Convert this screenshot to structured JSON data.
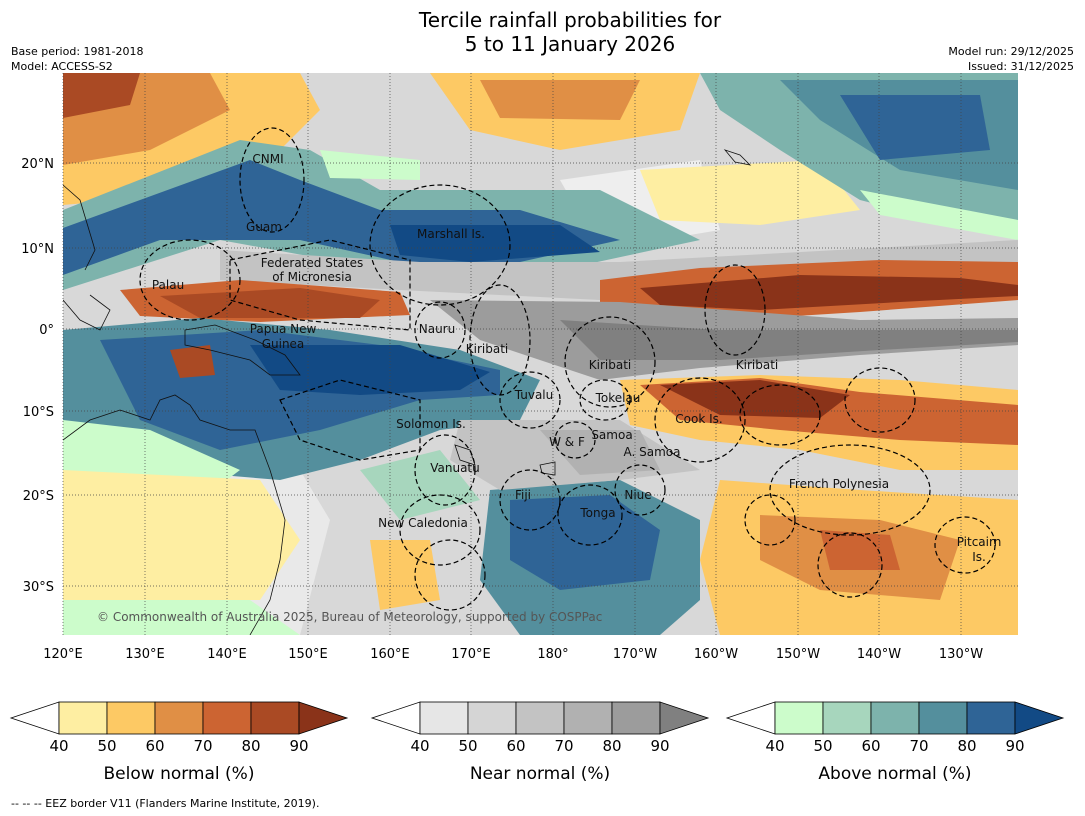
{
  "title": {
    "line1": "Tercile rainfall probabilities for",
    "line2": "5 to 11 January 2026"
  },
  "meta": {
    "base_period": "Base period: 1981-2018",
    "model": "Model: ACCESS-S2",
    "model_run": "Model run: 29/12/2025",
    "issued": "Issued: 31/12/2025"
  },
  "axes": {
    "lat_labels": [
      "20°N",
      "10°N",
      "0°",
      "10°S",
      "20°S",
      "30°S"
    ],
    "lon_labels": [
      "120°E",
      "130°E",
      "140°E",
      "150°E",
      "160°E",
      "170°E",
      "180°",
      "170°W",
      "160°W",
      "150°W",
      "140°W",
      "130°W"
    ]
  },
  "places": [
    "CNMI",
    "Guam",
    "Marshall Is.",
    "Federated States",
    "of Micronesia",
    "Palau",
    "Papua New",
    "Guinea",
    "Nauru",
    "Kiribati",
    "Kiribati",
    "Kiribati",
    "Tuvalu",
    "Tokelau",
    "Cook Is.",
    "Solomon Is.",
    "W & F",
    "Samoa",
    "A. Samoa",
    "Vanuatu",
    "Fiji",
    "Niue",
    "French Polynesia",
    "Tonga",
    "New Caledonia",
    "Pitcairn",
    "Is."
  ],
  "credit": "© Commonwealth of Australia 2025, Bureau of Meteorology, supported by COSPPac",
  "colorbars": [
    {
      "name": "below",
      "label": "Below normal (%)",
      "ticks": [
        "40",
        "50",
        "60",
        "70",
        "80",
        "90"
      ],
      "colors": [
        "#ffffff",
        "#feeea2",
        "#fdc964",
        "#e08f45",
        "#cc6432",
        "#aa4a24",
        "#8a3319"
      ]
    },
    {
      "name": "near",
      "label": "Near normal (%)",
      "ticks": [
        "40",
        "50",
        "60",
        "70",
        "80",
        "90"
      ],
      "colors": [
        "#ffffff",
        "#e6e6e6",
        "#d5d5d5",
        "#c3c3c3",
        "#b1b1b1",
        "#9c9c9c",
        "#808080"
      ]
    },
    {
      "name": "above",
      "label": "Above normal (%)",
      "ticks": [
        "40",
        "50",
        "60",
        "70",
        "80",
        "90"
      ],
      "colors": [
        "#ffffff",
        "#ccfccb",
        "#a7d6bd",
        "#7db3ac",
        "#548f9d",
        "#2f6496",
        "#124a85"
      ]
    }
  ],
  "footnote": "--  --  -- EEZ border V11 (Flanders Marine Institute, 2019)."
}
